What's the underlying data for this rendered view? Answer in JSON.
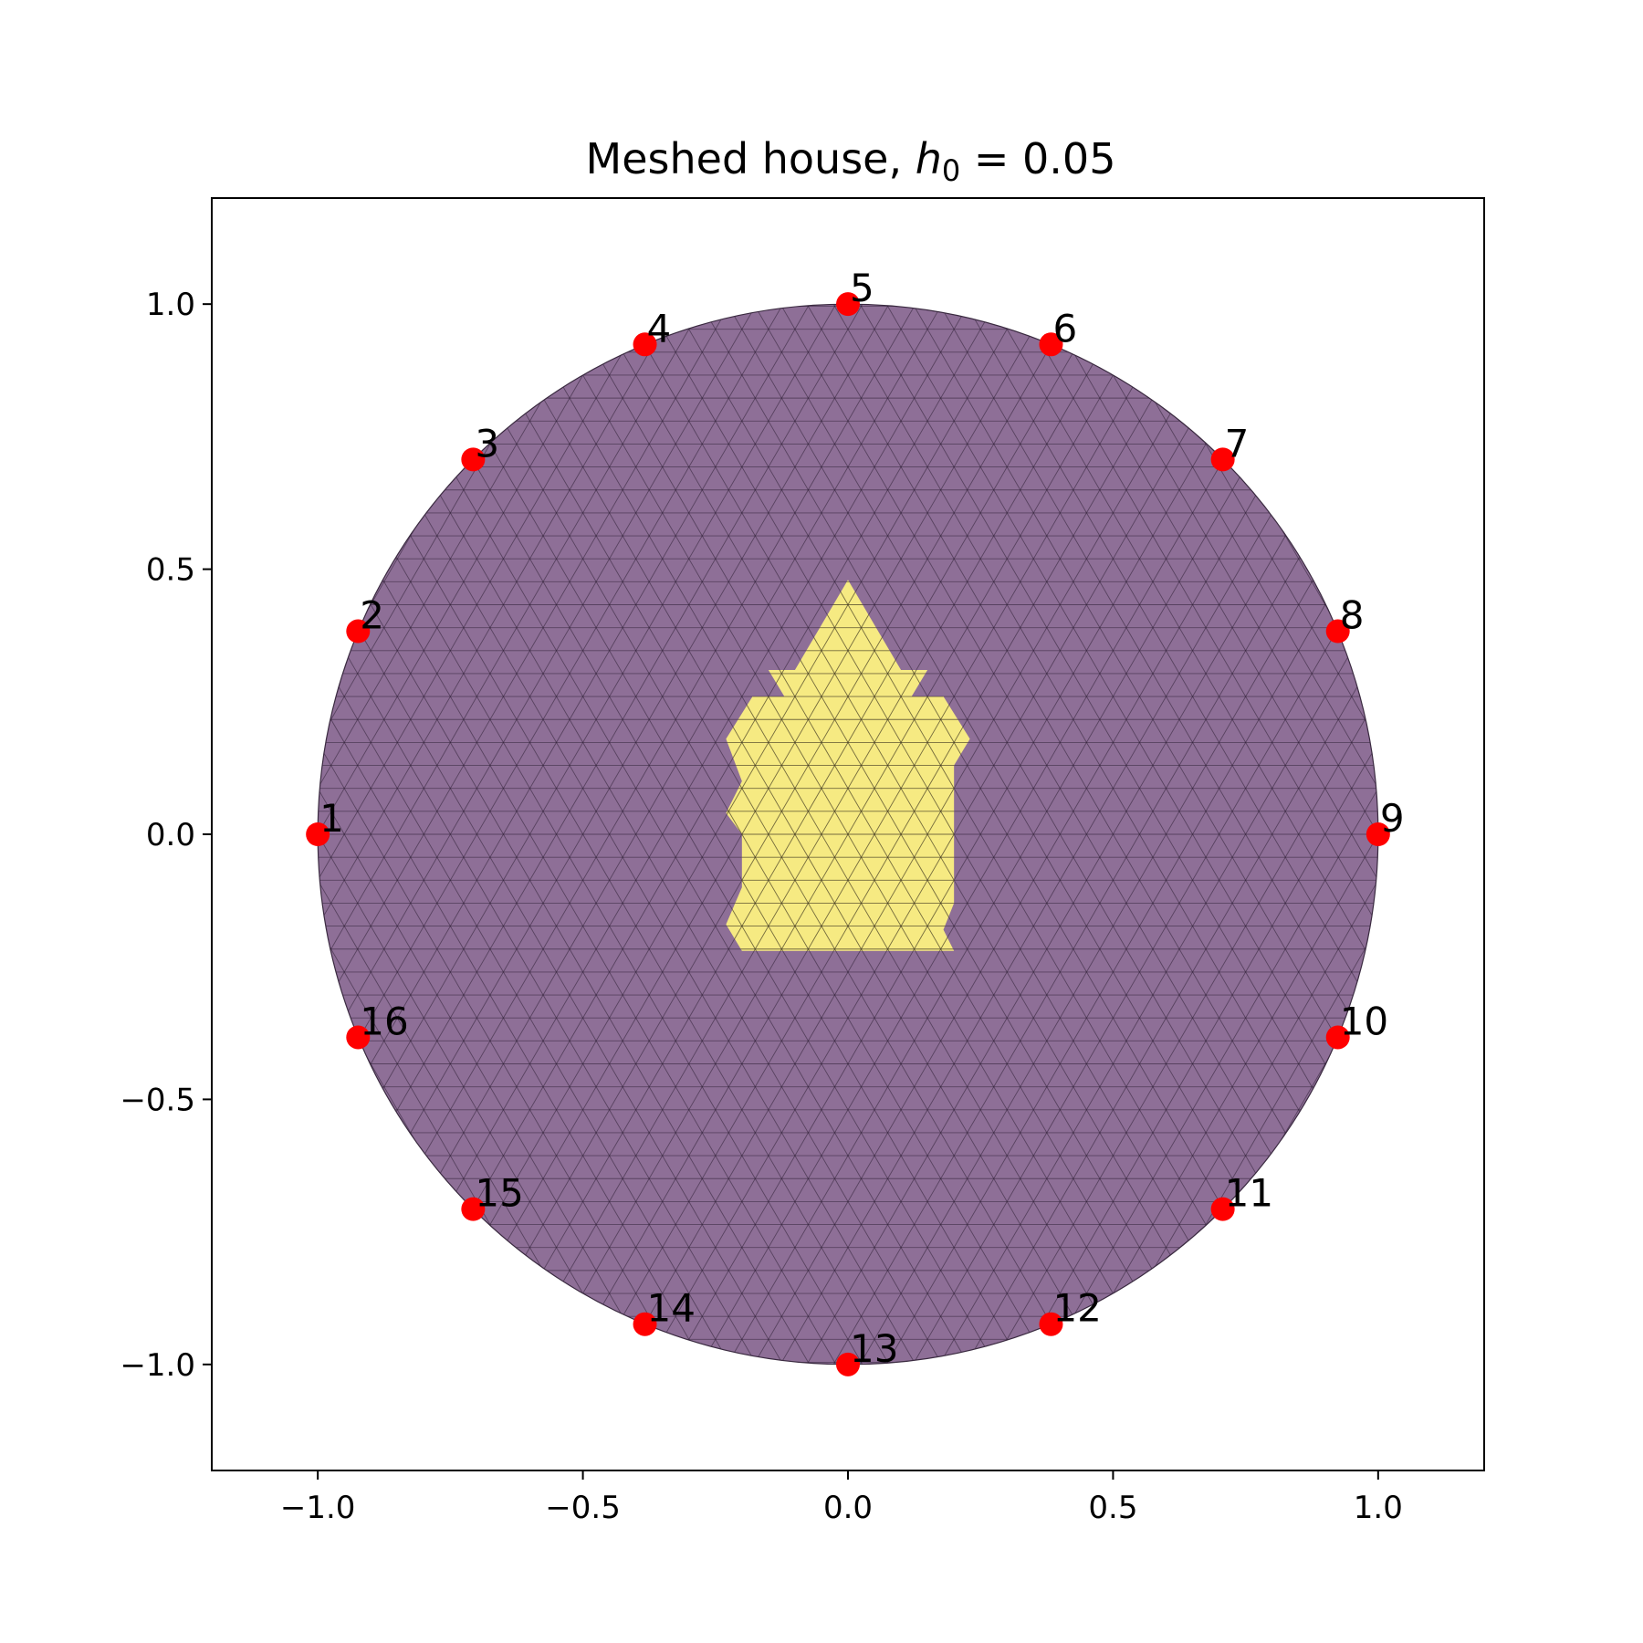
{
  "chart_data": {
    "type": "scatter",
    "title_prefix": "Meshed house, ",
    "title_var": "h",
    "title_sub": "0",
    "title_eq": " = 0.05",
    "xlim": [
      -1.2,
      1.2
    ],
    "ylim": [
      -1.2,
      1.2
    ],
    "xticks": [
      -1.0,
      -0.5,
      0.0,
      0.5,
      1.0
    ],
    "yticks": [
      -1.0,
      -0.5,
      0.0,
      0.5,
      1.0
    ],
    "xtick_labels": [
      "−1.0",
      "−0.5",
      "0.0",
      "0.5",
      "1.0"
    ],
    "ytick_labels": [
      "−1.0",
      "−0.5",
      "0.0",
      "0.5",
      "1.0"
    ],
    "grid": false,
    "mesh_h0": 0.05,
    "domain": {
      "shape": "disk",
      "center": [
        0,
        0
      ],
      "radius": 1.0,
      "color": "#8e6f97"
    },
    "inclusion": {
      "name": "house",
      "color": "#f6ea82",
      "outline": [
        [
          0.0,
          0.48
        ],
        [
          0.1,
          0.31
        ],
        [
          0.15,
          0.31
        ],
        [
          0.12,
          0.26
        ],
        [
          0.18,
          0.26
        ],
        [
          0.23,
          0.18
        ],
        [
          0.2,
          0.13
        ],
        [
          0.2,
          0.0
        ],
        [
          0.2,
          -0.13
        ],
        [
          0.18,
          -0.18
        ],
        [
          0.2,
          -0.22
        ],
        [
          0.05,
          -0.22
        ],
        [
          -0.05,
          -0.22
        ],
        [
          -0.2,
          -0.22
        ],
        [
          -0.23,
          -0.17
        ],
        [
          -0.2,
          -0.1
        ],
        [
          -0.2,
          0.0
        ],
        [
          -0.23,
          0.04
        ],
        [
          -0.2,
          0.1
        ],
        [
          -0.23,
          0.18
        ],
        [
          -0.18,
          0.26
        ],
        [
          -0.12,
          0.26
        ],
        [
          -0.15,
          0.31
        ],
        [
          -0.1,
          0.31
        ]
      ]
    },
    "electrodes": {
      "color": "#ff0000",
      "points": [
        {
          "label": "1",
          "x": -1.0,
          "y": 0.0
        },
        {
          "label": "2",
          "x": -0.924,
          "y": 0.383
        },
        {
          "label": "3",
          "x": -0.707,
          "y": 0.707
        },
        {
          "label": "4",
          "x": -0.383,
          "y": 0.924
        },
        {
          "label": "5",
          "x": 0.0,
          "y": 1.0
        },
        {
          "label": "6",
          "x": 0.383,
          "y": 0.924
        },
        {
          "label": "7",
          "x": 0.707,
          "y": 0.707
        },
        {
          "label": "8",
          "x": 0.924,
          "y": 0.383
        },
        {
          "label": "9",
          "x": 1.0,
          "y": 0.0
        },
        {
          "label": "10",
          "x": 0.924,
          "y": -0.383
        },
        {
          "label": "11",
          "x": 0.707,
          "y": -0.707
        },
        {
          "label": "12",
          "x": 0.383,
          "y": -0.924
        },
        {
          "label": "13",
          "x": 0.0,
          "y": -1.0
        },
        {
          "label": "14",
          "x": -0.383,
          "y": -0.924
        },
        {
          "label": "15",
          "x": -0.707,
          "y": -0.707
        },
        {
          "label": "16",
          "x": -0.924,
          "y": -0.383
        }
      ]
    }
  }
}
